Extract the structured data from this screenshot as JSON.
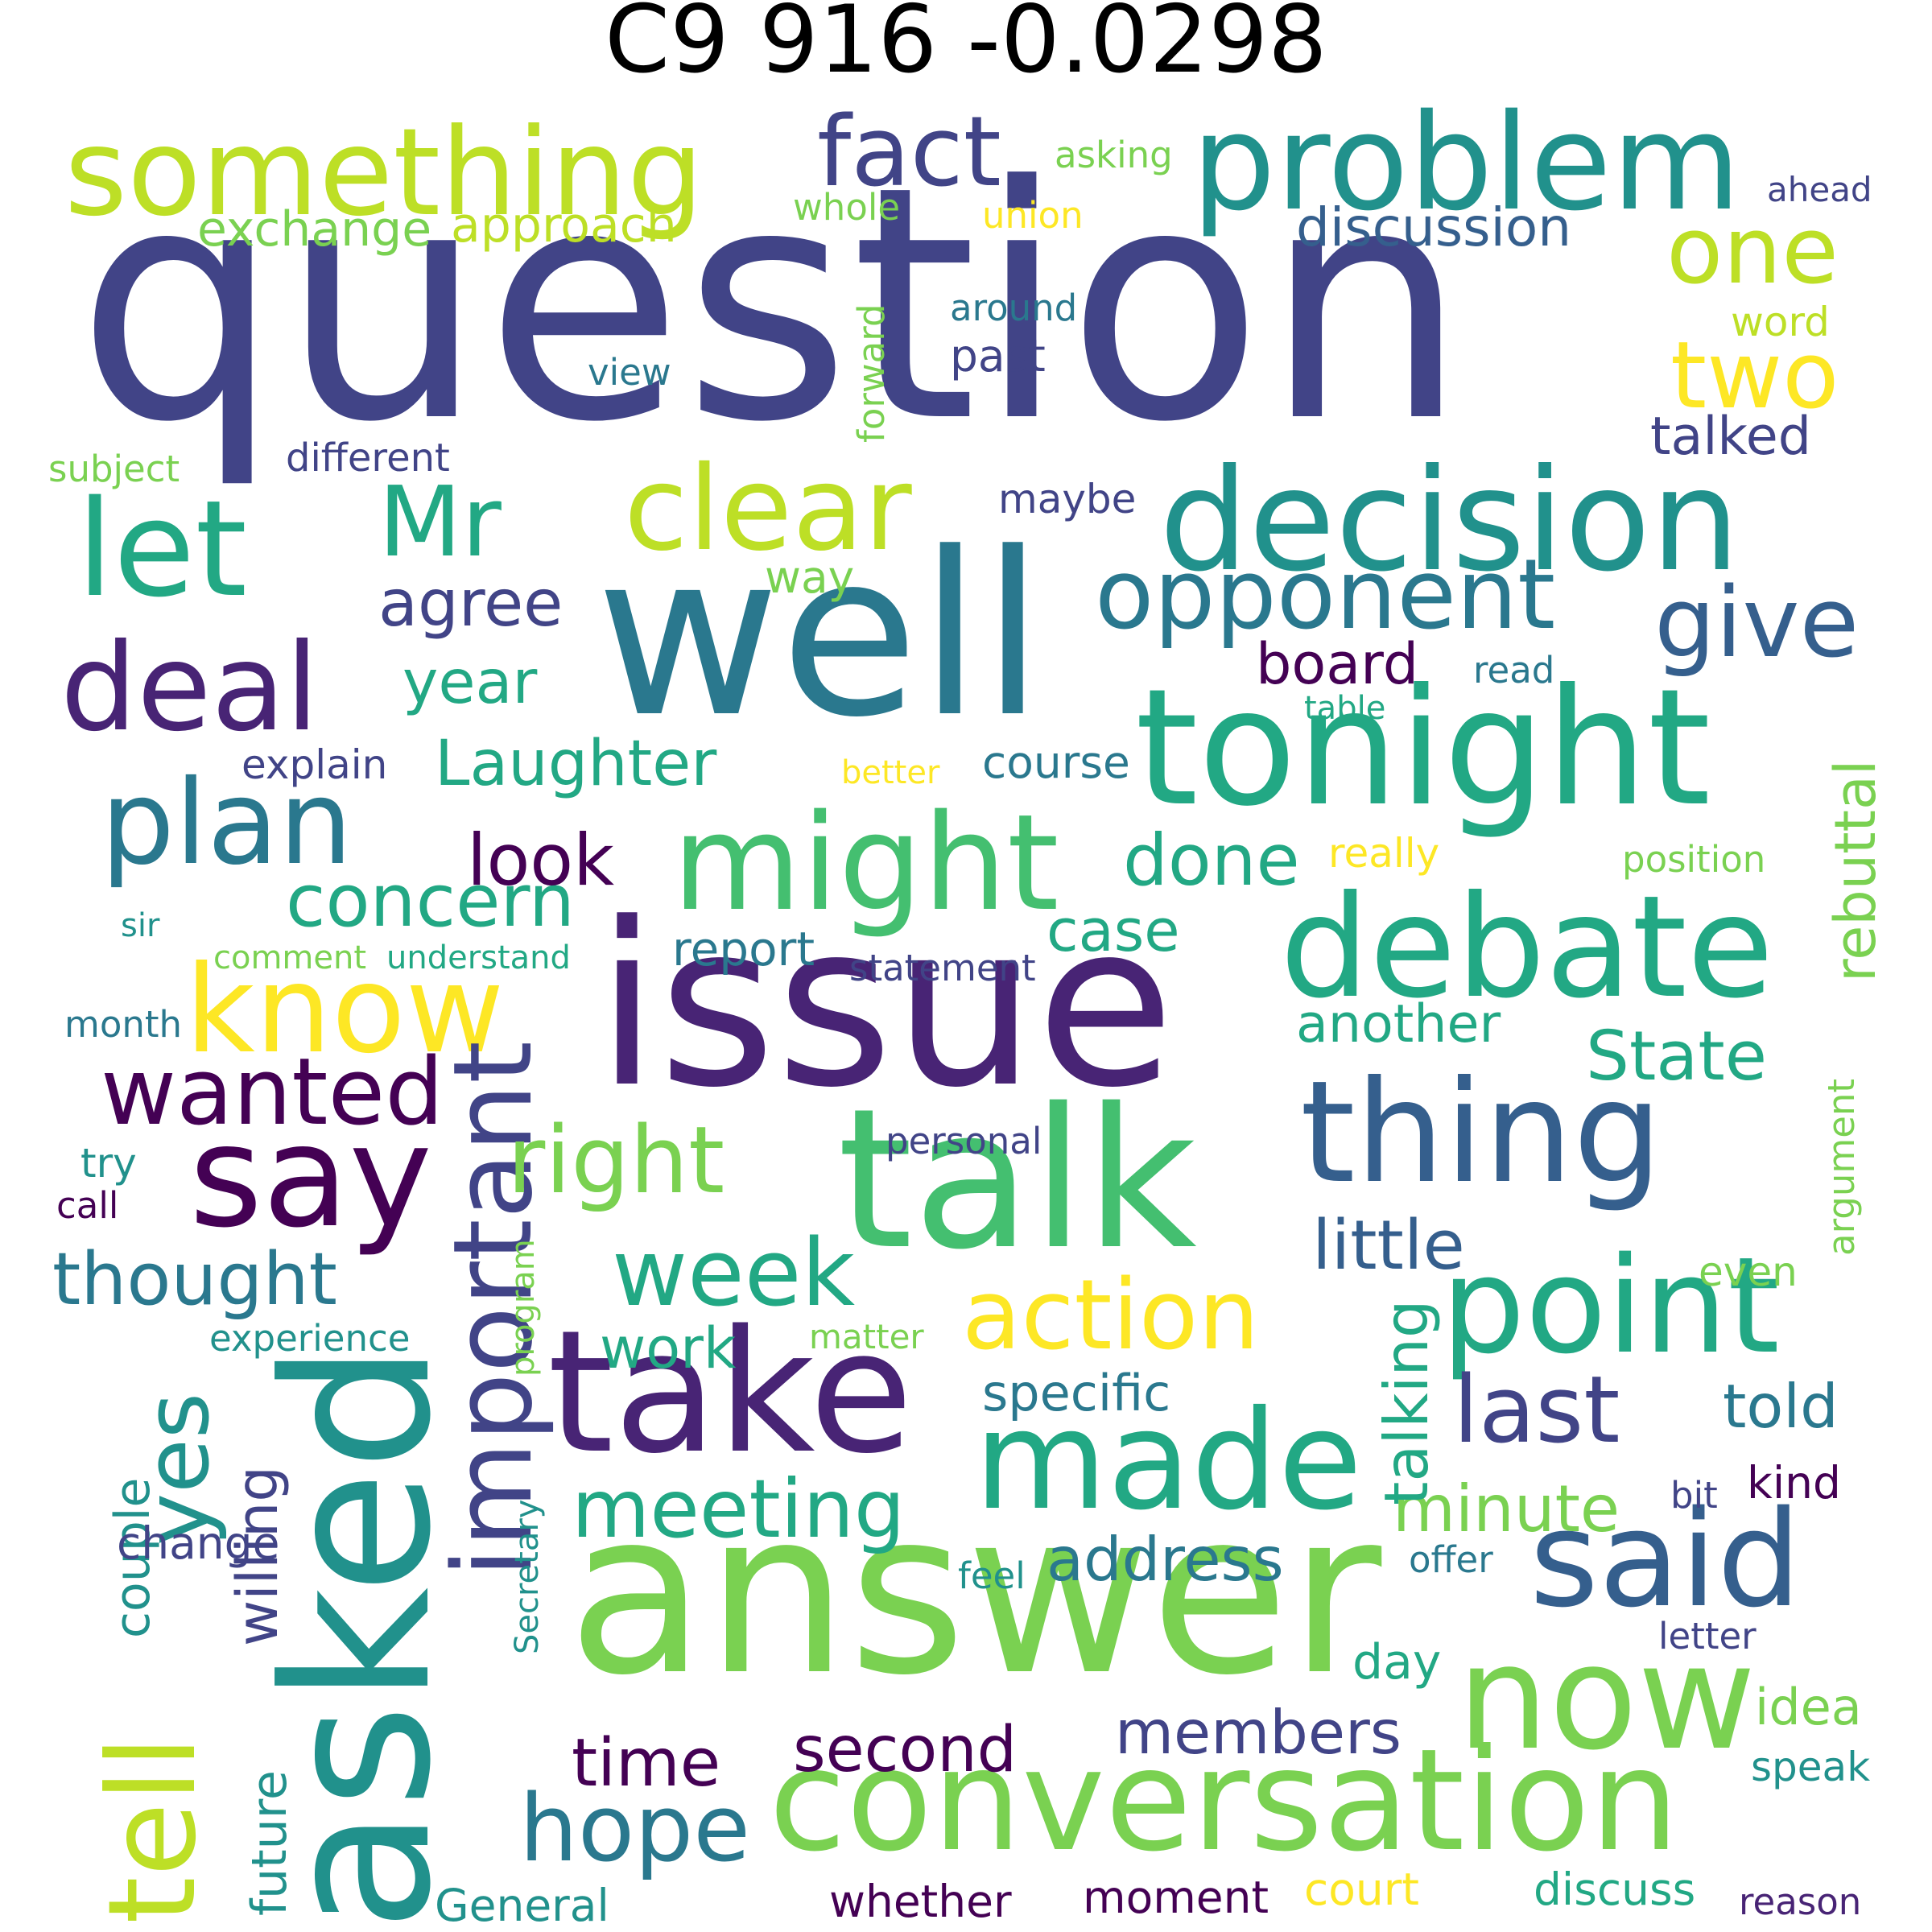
{
  "title": "C9 916 -0.0298",
  "palette": {
    "purple_dark": "#440154",
    "indigo": "#482475",
    "purple_blue": "#414487",
    "blue": "#355f8d",
    "steel": "#2a788e",
    "teal": "#21918c",
    "teal_green": "#22a884",
    "green": "#44bf70",
    "lime": "#7ad151",
    "yellow_green": "#bddf26",
    "yellow": "#fde725",
    "background": "#ffffff"
  },
  "words": [
    "question",
    "well",
    "issue",
    "answer",
    "talk",
    "take",
    "asked",
    "tonight",
    "debate",
    "decision",
    "problem",
    "something",
    "point",
    "thing",
    "now",
    "conversation",
    "say",
    "made",
    "said",
    "might",
    "know",
    "let",
    "plan",
    "deal",
    "clear",
    "fact",
    "Mr",
    "opponent",
    "give",
    "action",
    "important",
    "tell",
    "right",
    "week",
    "last",
    "hope",
    "meeting",
    "concern",
    "wanted",
    "thought",
    "yes",
    "one",
    "two",
    "agree",
    "year",
    "Laughter",
    "look",
    "done",
    "board",
    "case",
    "talked",
    "discussion",
    "approach",
    "exchange",
    "little",
    "State",
    "another",
    "rebuttal",
    "minute",
    "address",
    "time",
    "second",
    "members",
    "told",
    "kind",
    "work",
    "talking",
    "specific",
    "willing",
    "couple",
    "change",
    "future",
    "whether",
    "moment",
    "court",
    "discuss",
    "reason",
    "General",
    "Secretary",
    "program",
    "experience",
    "matter",
    "bit",
    "offer",
    "feel",
    "day",
    "letter",
    "idea",
    "speak",
    "even",
    "argument",
    "personal",
    "report",
    "statement",
    "comment",
    "understand",
    "month",
    "sir",
    "try",
    "call",
    "explain",
    "better",
    "course",
    "table",
    "read",
    "really",
    "position",
    "way",
    "maybe",
    "view",
    "past",
    "around",
    "word",
    "forward",
    "whole",
    "union",
    "asking",
    "ahead",
    "subject",
    "different"
  ]
}
